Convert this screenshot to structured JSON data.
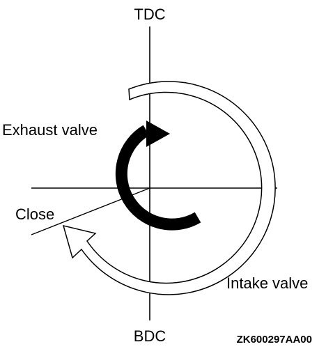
{
  "labels": {
    "top": "TDC",
    "bottom": "BDC",
    "exhaust": "Exhaust valve",
    "intake": "Intake valve",
    "close": "Close",
    "figure_code": "ZK600297AA00"
  },
  "colors": {
    "ink": "#000000",
    "background": "#ffffff"
  }
}
